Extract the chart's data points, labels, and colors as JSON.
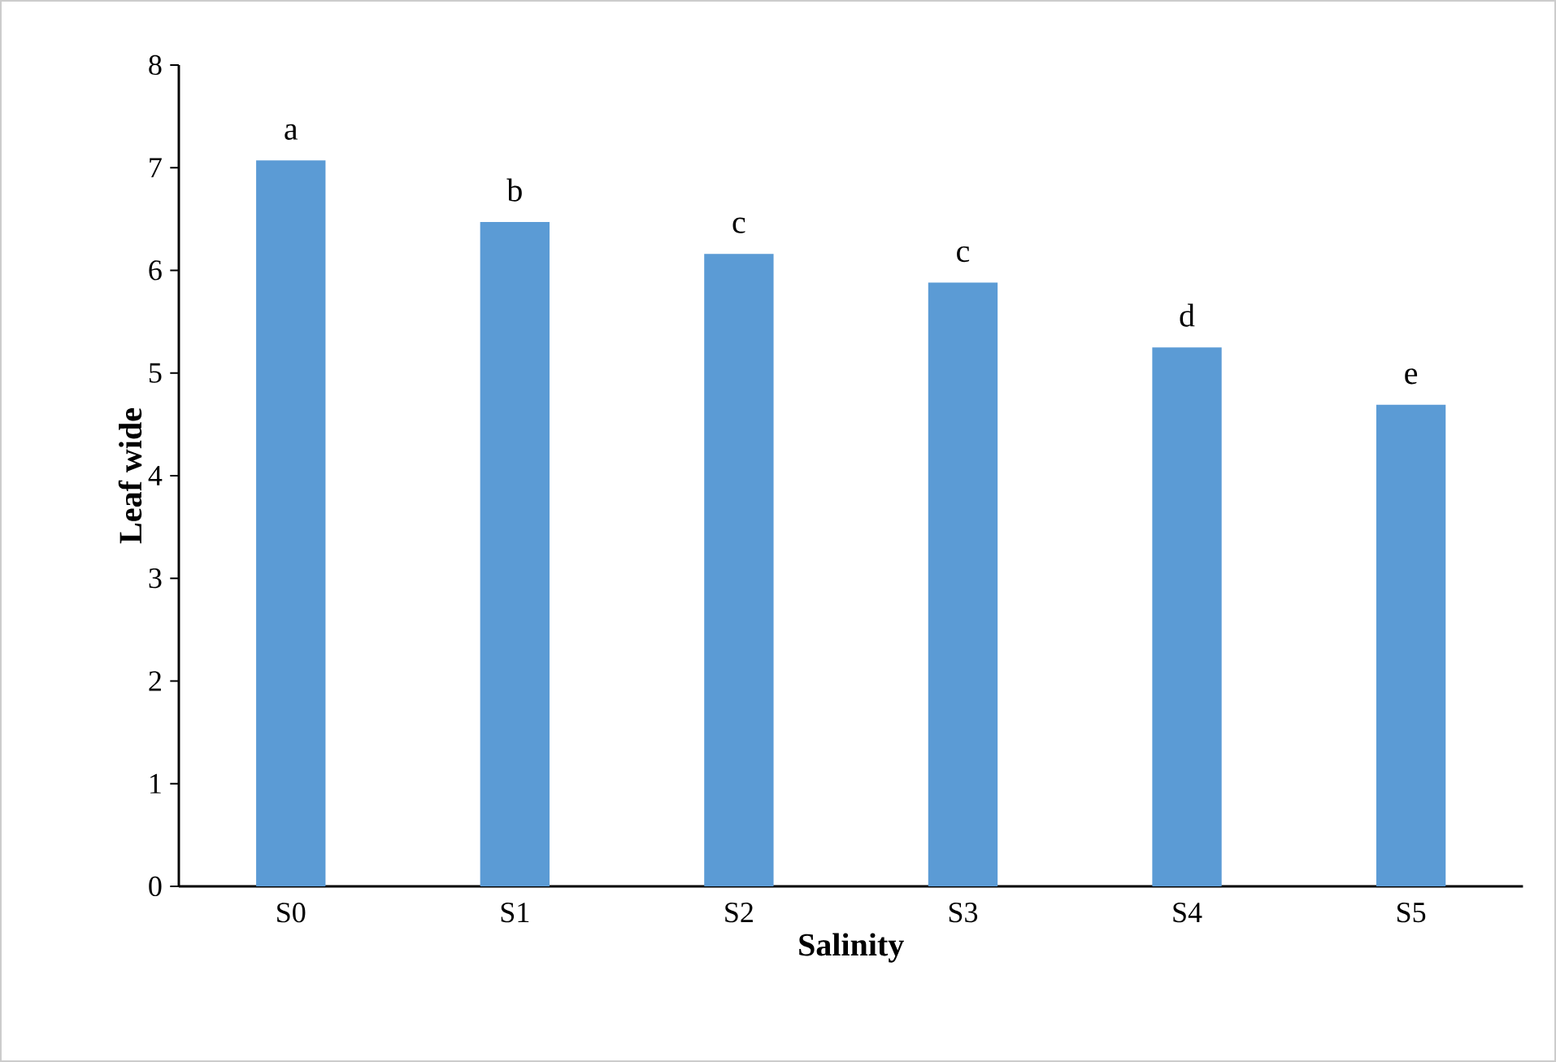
{
  "chart_data": {
    "type": "bar",
    "xlabel": "Salinity",
    "ylabel": "Leaf wide",
    "categories": [
      "S0",
      "S1",
      "S2",
      "S3",
      "S4",
      "S5"
    ],
    "values": [
      7.07,
      6.47,
      6.16,
      5.88,
      5.25,
      4.69
    ],
    "color": "#5b9bd5",
    "ylim": [
      0,
      8
    ],
    "yticks": [
      0,
      1,
      2,
      3,
      4,
      5,
      6,
      7,
      8
    ],
    "grid": false,
    "annotations": [
      {
        "text": "a",
        "x": "S0",
        "y": 7.07
      },
      {
        "text": "b",
        "x": "S1",
        "y": 6.47
      },
      {
        "text": "c",
        "x": "S2",
        "y": 6.16
      },
      {
        "text": "c",
        "x": "S3",
        "y": 5.88
      },
      {
        "text": "d",
        "x": "S4",
        "y": 5.25
      },
      {
        "text": "e",
        "x": "S5",
        "y": 4.69
      }
    ]
  }
}
